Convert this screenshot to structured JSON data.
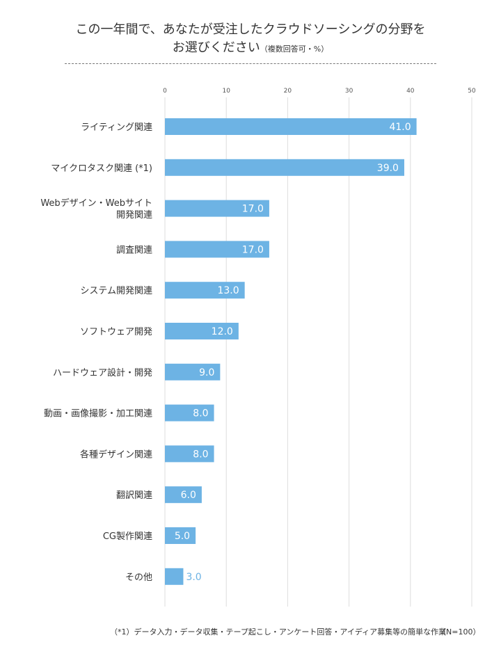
{
  "title": {
    "line1": "この一年間で、あなたが受注したクラウドソーシングの分野を",
    "line2": "お選びください",
    "note": "（複数回答可・%）"
  },
  "footnote": "（*1）データ入力・データ収集・テープ起こし・アンケート回答・アイディア募集等の簡単な作業",
  "sample_size": "（N=100）",
  "colors": {
    "bar": "#6db3e4",
    "label_inside": "#ffffff",
    "label_outside": "#6db3e4",
    "grid": "#dddddd"
  },
  "chart_data": {
    "type": "bar",
    "orientation": "horizontal",
    "categories": [
      [
        "ライティング関連"
      ],
      [
        "マイクロタスク関連 (*1)"
      ],
      [
        "Webデザイン・Webサイト",
        "開発関連"
      ],
      [
        "調査関連"
      ],
      [
        "システム開発関連"
      ],
      [
        "ソフトウェア開発"
      ],
      [
        "ハードウェア設計・開発"
      ],
      [
        "動画・画像撮影・加工関連"
      ],
      [
        "各種デザイン関連"
      ],
      [
        "翻訳関連"
      ],
      [
        "CG製作関連"
      ],
      [
        "その他"
      ]
    ],
    "values": [
      41.0,
      39.0,
      17.0,
      17.0,
      13.0,
      12.0,
      9.0,
      8.0,
      8.0,
      6.0,
      5.0,
      3.0
    ],
    "xlim": [
      0,
      50
    ],
    "ticks": [
      0,
      10,
      20,
      30,
      40,
      50
    ],
    "grid": true,
    "legend": "none"
  }
}
